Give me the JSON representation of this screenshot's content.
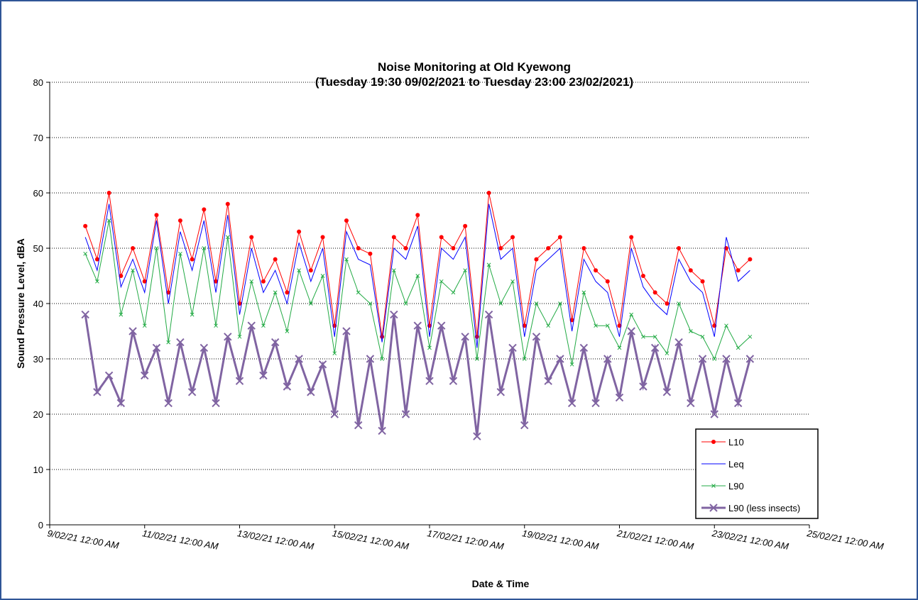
{
  "chart_data": {
    "type": "line",
    "title": "Noise Monitoring at Old Kyewong",
    "subtitle": "(Tuesday 19:30 09/02/2021 to Tuesday 23:00 23/02/2021)",
    "y_label": "Sound Pressure Level, dBA",
    "x_label": "Date & Time",
    "x": [
      "2021-02-09T18:00",
      "2021-02-10T00:00",
      "2021-02-10T06:00",
      "2021-02-10T12:00",
      "2021-02-10T18:00",
      "2021-02-11T00:00",
      "2021-02-11T06:00",
      "2021-02-11T12:00",
      "2021-02-11T18:00",
      "2021-02-12T00:00",
      "2021-02-12T06:00",
      "2021-02-12T12:00",
      "2021-02-12T18:00",
      "2021-02-13T00:00",
      "2021-02-13T06:00",
      "2021-02-13T12:00",
      "2021-02-13T18:00",
      "2021-02-14T00:00",
      "2021-02-14T06:00",
      "2021-02-14T12:00",
      "2021-02-14T18:00",
      "2021-02-15T00:00",
      "2021-02-15T06:00",
      "2021-02-15T12:00",
      "2021-02-15T18:00",
      "2021-02-16T00:00",
      "2021-02-16T06:00",
      "2021-02-16T12:00",
      "2021-02-16T18:00",
      "2021-02-17T00:00",
      "2021-02-17T06:00",
      "2021-02-17T12:00",
      "2021-02-17T18:00",
      "2021-02-18T00:00",
      "2021-02-18T06:00",
      "2021-02-18T12:00",
      "2021-02-18T18:00",
      "2021-02-19T00:00",
      "2021-02-19T06:00",
      "2021-02-19T12:00",
      "2021-02-19T18:00",
      "2021-02-20T00:00",
      "2021-02-20T06:00",
      "2021-02-20T12:00",
      "2021-02-20T18:00",
      "2021-02-21T00:00",
      "2021-02-21T06:00",
      "2021-02-21T12:00",
      "2021-02-21T18:00",
      "2021-02-22T00:00",
      "2021-02-22T06:00",
      "2021-02-22T12:00",
      "2021-02-22T18:00",
      "2021-02-23T00:00",
      "2021-02-23T06:00",
      "2021-02-23T12:00",
      "2021-02-23T18:00"
    ],
    "series": [
      {
        "name": "L10",
        "color": "#ff0000",
        "marker": "circle",
        "line_width": 1,
        "values": [
          54,
          48,
          60,
          45,
          50,
          44,
          56,
          42,
          55,
          48,
          57,
          44,
          58,
          40,
          52,
          44,
          48,
          42,
          53,
          46,
          52,
          36,
          55,
          50,
          49,
          34,
          52,
          50,
          56,
          36,
          52,
          50,
          54,
          34,
          60,
          50,
          52,
          36,
          48,
          50,
          52,
          37,
          50,
          46,
          44,
          36,
          52,
          45,
          42,
          40,
          50,
          46,
          44,
          36,
          50,
          46,
          48
        ]
      },
      {
        "name": "Leq",
        "color": "#0000ff",
        "marker": "none",
        "line_width": 1,
        "values": [
          52,
          46,
          58,
          43,
          48,
          42,
          55,
          40,
          53,
          46,
          55,
          42,
          56,
          38,
          50,
          42,
          46,
          40,
          51,
          44,
          50,
          34,
          53,
          48,
          47,
          33,
          50,
          48,
          54,
          34,
          50,
          48,
          52,
          32,
          58,
          48,
          50,
          34,
          46,
          48,
          50,
          35,
          48,
          44,
          42,
          34,
          50,
          43,
          40,
          38,
          48,
          44,
          42,
          34,
          52,
          44,
          46
        ]
      },
      {
        "name": "L90",
        "color": "#22aa44",
        "marker": "x",
        "line_width": 1,
        "values": [
          49,
          44,
          55,
          38,
          46,
          36,
          50,
          33,
          49,
          38,
          50,
          36,
          52,
          34,
          44,
          36,
          42,
          35,
          46,
          40,
          45,
          31,
          48,
          42,
          40,
          30,
          46,
          40,
          45,
          32,
          44,
          42,
          46,
          30,
          47,
          40,
          44,
          30,
          40,
          36,
          40,
          29,
          42,
          36,
          36,
          32,
          38,
          34,
          34,
          31,
          40,
          35,
          34,
          30,
          36,
          32,
          34
        ]
      },
      {
        "name": "L90 (less insects)",
        "color": "#8064a2",
        "marker": "x",
        "line_width": 3,
        "values": [
          38,
          24,
          27,
          22,
          35,
          27,
          32,
          22,
          33,
          24,
          32,
          22,
          34,
          26,
          36,
          27,
          33,
          25,
          30,
          24,
          29,
          20,
          35,
          18,
          30,
          17,
          38,
          20,
          36,
          26,
          36,
          26,
          34,
          16,
          38,
          24,
          32,
          18,
          34,
          26,
          30,
          22,
          32,
          22,
          30,
          23,
          35,
          25,
          32,
          24,
          33,
          22,
          30,
          20,
          30,
          22,
          30
        ]
      }
    ],
    "xlim": [
      "2021-02-09T00:00",
      "2021-02-25T00:00"
    ],
    "xticks": [
      {
        "value": "2021-02-09T00:00",
        "label": "9/02/21 12:00 AM"
      },
      {
        "value": "2021-02-11T00:00",
        "label": "11/02/21 12:00 AM"
      },
      {
        "value": "2021-02-13T00:00",
        "label": "13/02/21 12:00 AM"
      },
      {
        "value": "2021-02-15T00:00",
        "label": "15/02/21 12:00 AM"
      },
      {
        "value": "2021-02-17T00:00",
        "label": "17/02/21 12:00 AM"
      },
      {
        "value": "2021-02-19T00:00",
        "label": "19/02/21 12:00 AM"
      },
      {
        "value": "2021-02-21T00:00",
        "label": "21/02/21 12:00 AM"
      },
      {
        "value": "2021-02-23T00:00",
        "label": "23/02/21 12:00 AM"
      },
      {
        "value": "2021-02-25T00:00",
        "label": "25/02/21 12:00 AM"
      }
    ],
    "ylim": [
      0,
      80
    ],
    "yticks": [
      0,
      10,
      20,
      30,
      40,
      50,
      60,
      70,
      80
    ],
    "grid": true,
    "legend": "lower right"
  }
}
